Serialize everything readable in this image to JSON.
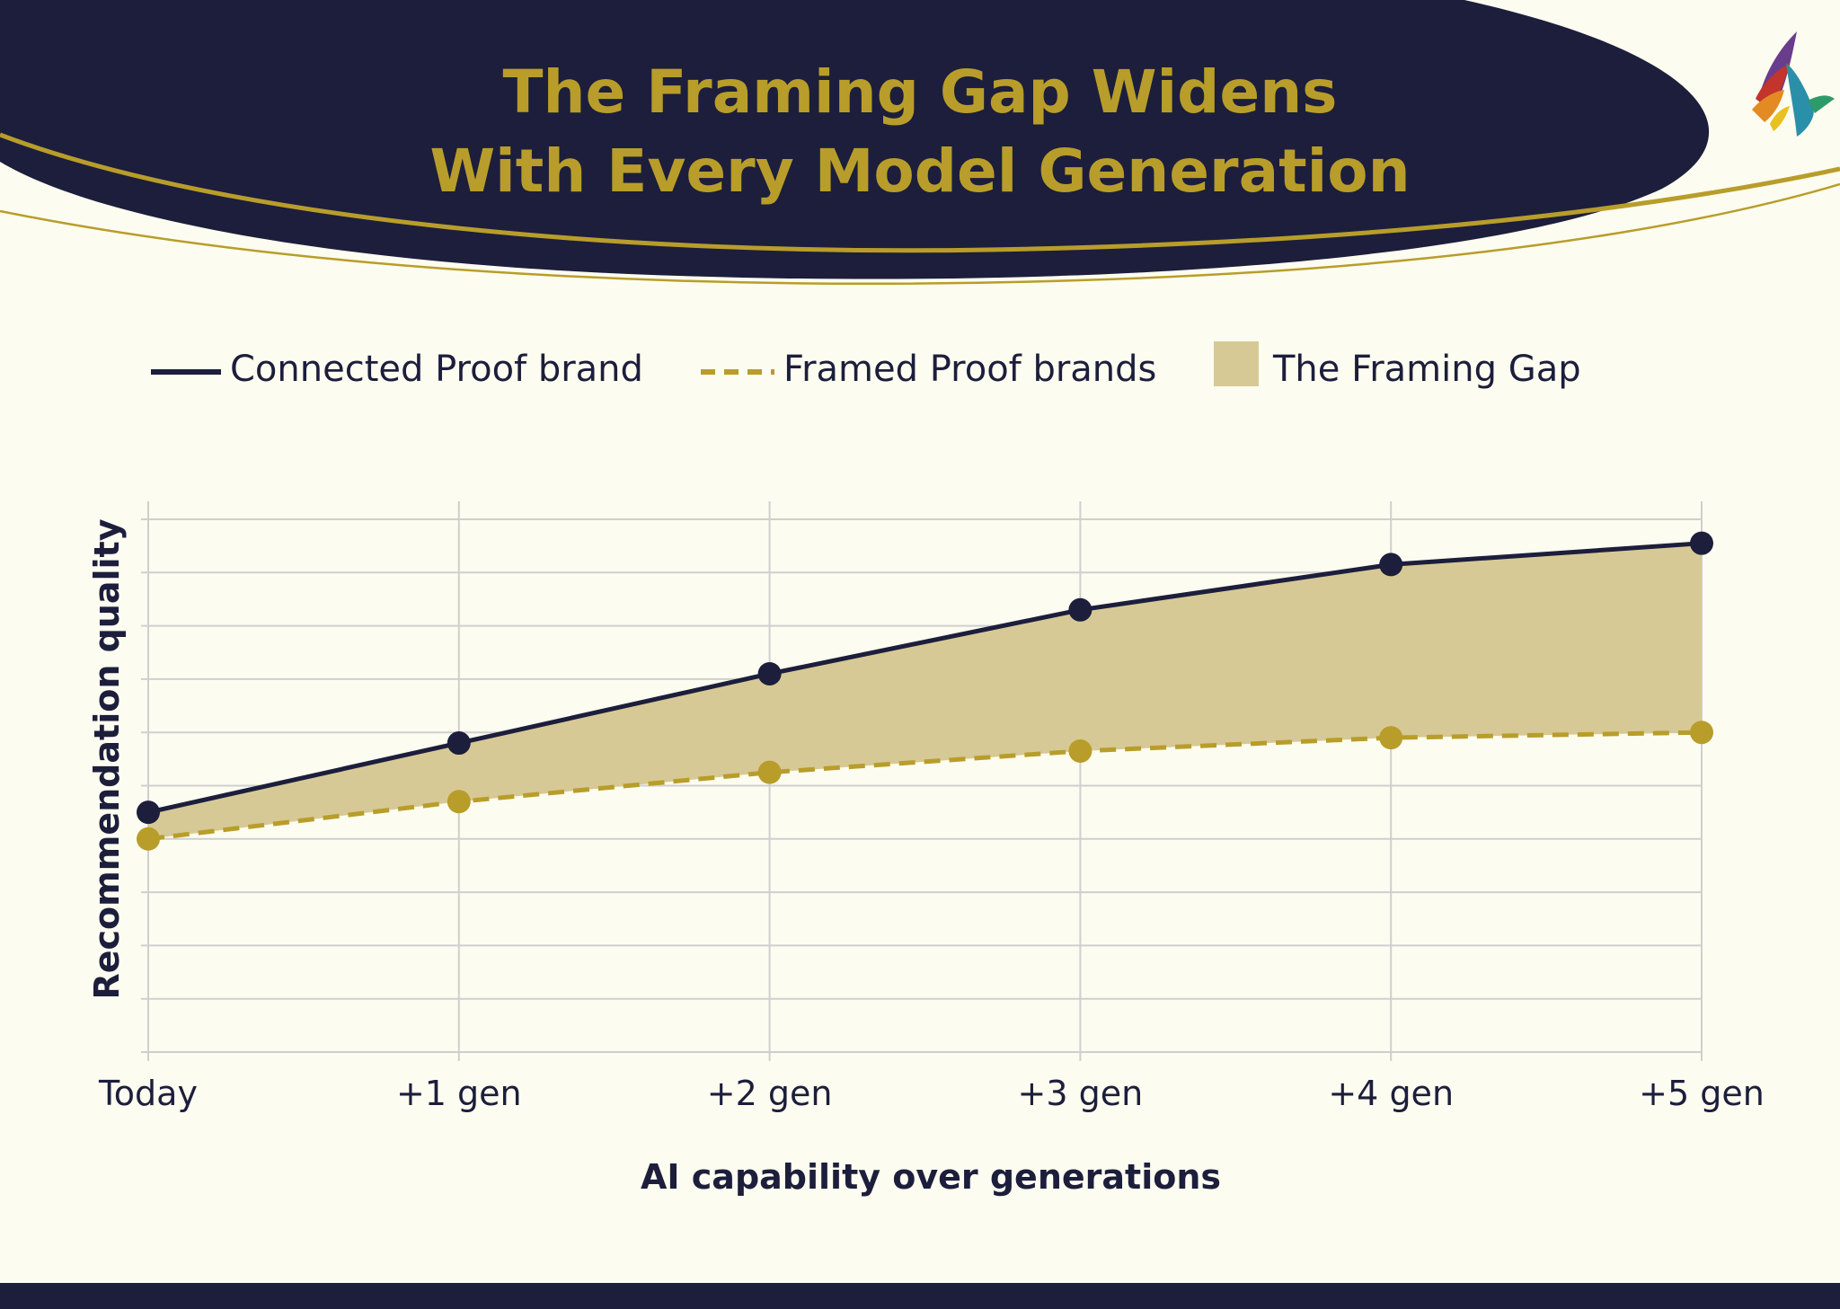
{
  "header": {
    "title_line1": "The Framing Gap Widens",
    "title_line2": "With Every Model Generation"
  },
  "logo": {
    "icon": "bird-logo-icon"
  },
  "legend": [
    {
      "label": "Connected Proof brand",
      "style": "solid-line"
    },
    {
      "label": "Framed Proof brands",
      "style": "dashed-line"
    },
    {
      "label": "The Framing Gap",
      "style": "filled-area"
    }
  ],
  "colors": {
    "navy": "#1c1e3c",
    "gold": "#b89d2a",
    "gap_fill": "#d6c995",
    "background": "#fdfcf0",
    "grid": "#cfcfcf"
  },
  "chart_data": {
    "type": "line",
    "categories": [
      "Today",
      "+1 gen",
      "+2 gen",
      "+3 gen",
      "+4 gen",
      "+5 gen"
    ],
    "series": [
      {
        "name": "Connected Proof brand",
        "values": [
          45,
          58,
          71,
          83,
          91.5,
          95.5
        ]
      },
      {
        "name": "Framed Proof brands",
        "values": [
          40,
          47,
          52.5,
          56.5,
          59,
          60
        ]
      }
    ],
    "area_between_series": "The Framing Gap",
    "xlabel": "AI capability over generations",
    "ylabel": "Recommendation quality",
    "ylim": [
      0,
      100
    ],
    "y_tick_labels_shown": false,
    "grid": true,
    "legend_position": "top"
  }
}
